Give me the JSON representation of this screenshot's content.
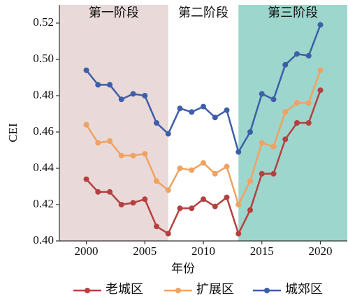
{
  "chart_data": {
    "type": "line",
    "x": [
      2000,
      2001,
      2002,
      2003,
      2004,
      2005,
      2006,
      2007,
      2008,
      2009,
      2010,
      2011,
      2012,
      2013,
      2014,
      2015,
      2016,
      2017,
      2018,
      2019,
      2020
    ],
    "series": [
      {
        "name": "老城区",
        "color": "#b5403f",
        "values": [
          0.434,
          0.427,
          0.427,
          0.42,
          0.421,
          0.423,
          0.408,
          0.404,
          0.418,
          0.418,
          0.423,
          0.419,
          0.424,
          0.404,
          0.417,
          0.437,
          0.437,
          0.456,
          0.465,
          0.465,
          0.483
        ]
      },
      {
        "name": "扩展区",
        "color": "#f0a262",
        "values": [
          0.464,
          0.454,
          0.455,
          0.447,
          0.447,
          0.448,
          0.433,
          0.428,
          0.44,
          0.439,
          0.443,
          0.437,
          0.441,
          0.42,
          0.433,
          0.454,
          0.452,
          0.471,
          0.476,
          0.476,
          0.494
        ]
      },
      {
        "name": "城郊区",
        "color": "#3d5ea8",
        "values": [
          0.494,
          0.486,
          0.486,
          0.478,
          0.481,
          0.48,
          0.465,
          0.459,
          0.473,
          0.471,
          0.474,
          0.468,
          0.472,
          0.449,
          0.46,
          0.481,
          0.478,
          0.497,
          0.503,
          0.502,
          0.519
        ]
      }
    ],
    "regions": [
      {
        "label": "第一阶段",
        "start": 1997.7,
        "end": 2007,
        "color": "#e9d9d9"
      },
      {
        "label": "第二阶段",
        "start": 2007,
        "end": 2013,
        "color": "#ffffff"
      },
      {
        "label": "第三阶段",
        "start": 2013,
        "end": 2022.3,
        "color": "#9dd6cc"
      }
    ],
    "xlabel": "年份",
    "ylabel": "CEI",
    "xlim": [
      1997.7,
      2022.3
    ],
    "xticks": [
      2000,
      2005,
      2010,
      2015,
      2020
    ],
    "ylim": [
      0.4,
      0.53
    ],
    "yticks": [
      {
        "value": 0.4,
        "label": "0.40"
      },
      0.42,
      0.44,
      0.46,
      0.48,
      {
        "value": 0.5,
        "label": "0.50"
      },
      0.52
    ],
    "legend": "bottom"
  }
}
